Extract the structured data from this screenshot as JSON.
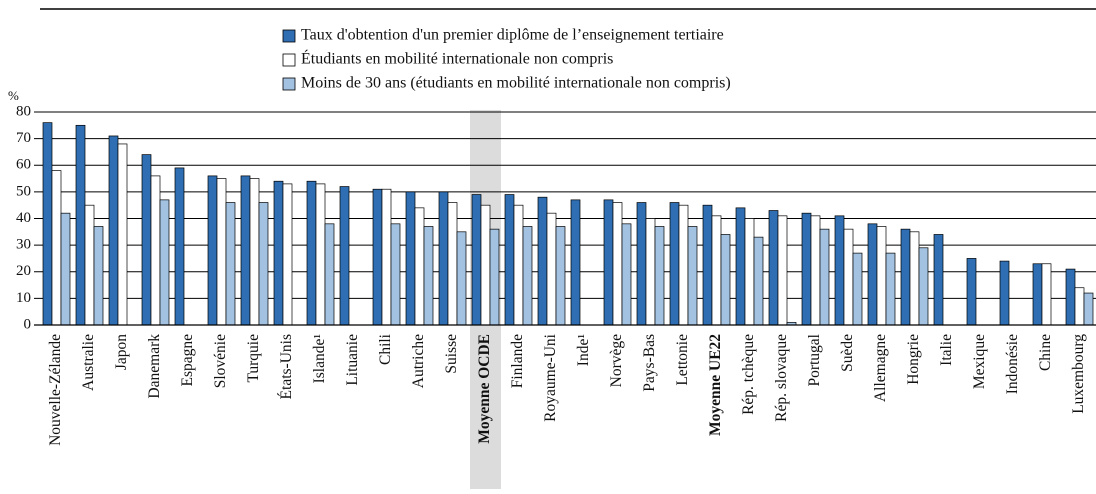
{
  "chart_data": {
    "type": "bar",
    "y_unit": "%",
    "categories": [
      "Nouvelle-Zélande",
      "Australie",
      "Japon",
      "Danemark",
      "Espagne",
      "Slovénie",
      "Turquie",
      "États-Unis",
      "Islande¹",
      "Lituanie",
      "Chili",
      "Autriche",
      "Suisse",
      "Moyenne OCDE",
      "Finlande",
      "Royaume-Uni",
      "Inde¹",
      "Norvège",
      "Pays-Bas",
      "Lettonie",
      "Moyenne UE22",
      "Rép. tchèque",
      "Rép. slovaque",
      "Portugal",
      "Suède",
      "Allemagne",
      "Hongrie",
      "Italie",
      "Mexique",
      "Indonésie",
      "Chine",
      "Luxembourg"
    ],
    "series": [
      {
        "name": "Taux d'obtention d'un premier diplôme de l’enseignement tertiaire",
        "color": "#2f6eb2",
        "values": [
          76,
          75,
          71,
          64,
          59,
          56,
          56,
          54,
          54,
          52,
          51,
          50,
          50,
          49,
          49,
          48,
          47,
          47,
          46,
          46,
          45,
          44,
          43,
          42,
          41,
          38,
          36,
          34,
          25,
          24,
          23,
          21
        ]
      },
      {
        "name": "Étudiants en mobilité internationale non compris",
        "color": "#ffffff",
        "values": [
          58,
          45,
          68,
          56,
          null,
          55,
          55,
          53,
          53,
          null,
          51,
          44,
          46,
          45,
          45,
          42,
          null,
          46,
          40,
          45,
          41,
          40,
          41,
          41,
          36,
          37,
          35,
          null,
          null,
          null,
          23,
          14
        ]
      },
      {
        "name": "Moins de 30 ans (étudiants en mobilité internationale non compris)",
        "color": "#a3c2e2",
        "values": [
          42,
          37,
          null,
          47,
          null,
          46,
          46,
          null,
          38,
          null,
          38,
          37,
          35,
          36,
          37,
          37,
          null,
          38,
          37,
          37,
          34,
          33,
          1,
          36,
          27,
          27,
          29,
          null,
          null,
          null,
          null,
          12
        ]
      }
    ],
    "ylim": [
      0,
      80
    ],
    "yticks": [
      0,
      10,
      20,
      30,
      40,
      50,
      60,
      70,
      80
    ],
    "grid": true,
    "highlight_categories": [
      13
    ],
    "bold_categories": [
      13,
      20
    ]
  }
}
